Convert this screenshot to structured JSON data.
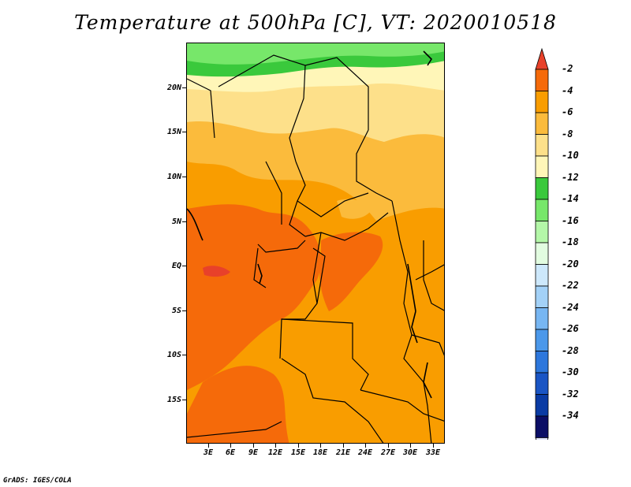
{
  "title": "Temperature at 500hPa [C], VT: 2020010518",
  "footer": "GrADS: IGES/COLA",
  "lat_labels": [
    "20N",
    "15N",
    "10N",
    "5N",
    "EQ",
    "5S",
    "10S",
    "15S"
  ],
  "lon_labels": [
    "3E",
    "6E",
    "9E",
    "12E",
    "15E",
    "18E",
    "21E",
    "24E",
    "27E",
    "30E",
    "33E"
  ],
  "colorbar": {
    "labels": [
      "-2",
      "-4",
      "-6",
      "-8",
      "-10",
      "-12",
      "-14",
      "-16",
      "-18",
      "-20",
      "-22",
      "-24",
      "-26",
      "-28",
      "-30",
      "-32",
      "-34"
    ],
    "colors": [
      "#e8412a",
      "#f56a0a",
      "#f99d00",
      "#fbbb3c",
      "#fde08a",
      "#fff6b8",
      "#3ac93c",
      "#77e76a",
      "#b4f7a8",
      "#e2fce0",
      "#cde8fb",
      "#a3d1f7",
      "#77b6f2",
      "#4b98ea",
      "#2d77dc",
      "#1a55c4",
      "#0a3ba4",
      "#0b0e66",
      "#e0e4fb"
    ]
  },
  "map": {
    "colors": {
      "very_warm": "#f56a0a",
      "warm": "#f99d00",
      "mild": "#fbbb3c",
      "cool": "#fde08a",
      "cooler": "#fff6b8",
      "green_light": "#77e76a",
      "green_dark": "#3ac93c",
      "hot_core": "#e8412a"
    }
  }
}
